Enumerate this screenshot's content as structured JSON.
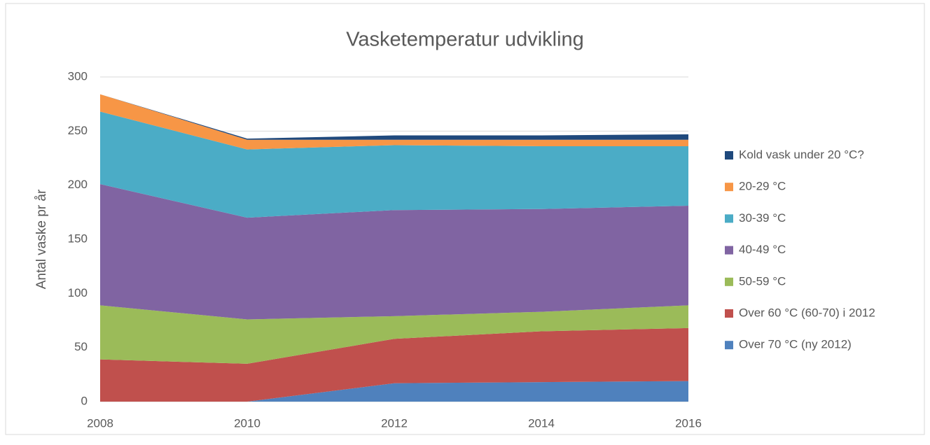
{
  "chart_data": {
    "type": "stacked_area",
    "title": "Vasketemperatur udvikling",
    "y_label": "Antal vaske pr år",
    "x": [
      2008,
      2010,
      2012,
      2014,
      2016
    ],
    "xlim": [
      2008,
      2016
    ],
    "xticks": [
      2008,
      2010,
      2012,
      2014,
      2016
    ],
    "ylim": [
      0,
      300
    ],
    "yticks": [
      0,
      50,
      100,
      150,
      200,
      250,
      300
    ],
    "grid": true,
    "legend": "right",
    "series": [
      {
        "name": "Over 70 °C (ny 2012)",
        "color": "#4f81bd",
        "values": [
          0,
          0,
          17,
          18,
          19
        ]
      },
      {
        "name": "Over 60 °C (60-70) i 2012",
        "color": "#c0504d",
        "values": [
          39,
          35,
          41,
          47,
          49
        ]
      },
      {
        "name": "50-59 °C",
        "color": "#9bbb59",
        "values": [
          50,
          41,
          21,
          18,
          21
        ]
      },
      {
        "name": "40-49 °C",
        "color": "#8064a2",
        "values": [
          112,
          94,
          98,
          95,
          92
        ]
      },
      {
        "name": "30-39 °C",
        "color": "#4bacc6",
        "values": [
          67,
          63,
          60,
          58,
          55
        ]
      },
      {
        "name": "20-29 °C",
        "color": "#f79646",
        "values": [
          16,
          9,
          5,
          6,
          6
        ]
      },
      {
        "name": "Kold vask under 20 °C?",
        "color": "#1f497d",
        "values": [
          0,
          1,
          4,
          4,
          5
        ]
      }
    ]
  }
}
